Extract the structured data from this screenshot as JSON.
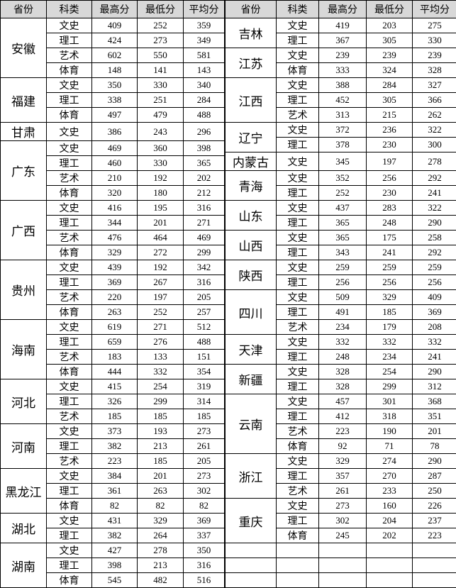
{
  "colors": {
    "header_bg": "#d8d8d8",
    "border": "#000000",
    "text": "#000000",
    "background": "#ffffff"
  },
  "columns": [
    "省份",
    "科类",
    "最高分",
    "最低分",
    "平均分"
  ],
  "tables": [
    {
      "side": "left",
      "empty_rows": 0,
      "groups": [
        {
          "province": "安徽",
          "rows": [
            [
              "文史",
              "409",
              "252",
              "359"
            ],
            [
              "理工",
              "424",
              "273",
              "349"
            ],
            [
              "艺术",
              "602",
              "550",
              "581"
            ],
            [
              "体育",
              "148",
              "141",
              "143"
            ]
          ]
        },
        {
          "province": "福建",
          "rows": [
            [
              "文史",
              "350",
              "330",
              "340"
            ],
            [
              "理工",
              "338",
              "251",
              "284"
            ],
            [
              "体育",
              "497",
              "479",
              "488"
            ]
          ]
        },
        {
          "province": "甘肃",
          "rows": [
            [
              "文史",
              "386",
              "243",
              "296"
            ]
          ]
        },
        {
          "province": "广东",
          "rows": [
            [
              "文史",
              "469",
              "360",
              "398"
            ],
            [
              "理工",
              "460",
              "330",
              "365"
            ],
            [
              "艺术",
              "210",
              "192",
              "202"
            ],
            [
              "体育",
              "320",
              "180",
              "212"
            ]
          ]
        },
        {
          "province": "广西",
          "rows": [
            [
              "文史",
              "416",
              "195",
              "316"
            ],
            [
              "理工",
              "344",
              "201",
              "271"
            ],
            [
              "艺术",
              "476",
              "464",
              "469"
            ],
            [
              "体育",
              "329",
              "272",
              "299"
            ]
          ]
        },
        {
          "province": "贵州",
          "rows": [
            [
              "文史",
              "439",
              "192",
              "342"
            ],
            [
              "理工",
              "369",
              "267",
              "316"
            ],
            [
              "艺术",
              "220",
              "197",
              "205"
            ],
            [
              "体育",
              "263",
              "252",
              "257"
            ]
          ]
        },
        {
          "province": "海南",
          "rows": [
            [
              "文史",
              "619",
              "271",
              "512"
            ],
            [
              "理工",
              "659",
              "276",
              "488"
            ],
            [
              "艺术",
              "183",
              "133",
              "151"
            ],
            [
              "体育",
              "444",
              "332",
              "354"
            ]
          ]
        },
        {
          "province": "河北",
          "rows": [
            [
              "文史",
              "415",
              "254",
              "319"
            ],
            [
              "理工",
              "326",
              "299",
              "314"
            ],
            [
              "艺术",
              "185",
              "185",
              "185"
            ]
          ]
        },
        {
          "province": "河南",
          "rows": [
            [
              "文史",
              "373",
              "193",
              "273"
            ],
            [
              "理工",
              "382",
              "213",
              "261"
            ],
            [
              "艺术",
              "223",
              "185",
              "205"
            ]
          ]
        },
        {
          "province": "黑龙江",
          "rows": [
            [
              "文史",
              "384",
              "201",
              "273"
            ],
            [
              "理工",
              "361",
              "263",
              "302"
            ],
            [
              "体育",
              "82",
              "82",
              "82"
            ]
          ]
        },
        {
          "province": "湖北",
          "rows": [
            [
              "文史",
              "431",
              "329",
              "369"
            ],
            [
              "理工",
              "382",
              "264",
              "337"
            ]
          ]
        },
        {
          "province": "湖南",
          "rows": [
            [
              "文史",
              "427",
              "278",
              "350"
            ],
            [
              "理工",
              "398",
              "213",
              "316"
            ],
            [
              "体育",
              "545",
              "482",
              "516"
            ]
          ]
        }
      ]
    },
    {
      "side": "right",
      "empty_rows": 3,
      "groups": [
        {
          "province": "吉林",
          "rows": [
            [
              "文史",
              "419",
              "203",
              "275"
            ],
            [
              "理工",
              "367",
              "305",
              "330"
            ]
          ]
        },
        {
          "province": "江苏",
          "rows": [
            [
              "文史",
              "239",
              "239",
              "239"
            ],
            [
              "体育",
              "333",
              "324",
              "328"
            ]
          ]
        },
        {
          "province": "江西",
          "rows": [
            [
              "文史",
              "388",
              "284",
              "327"
            ],
            [
              "理工",
              "452",
              "305",
              "366"
            ],
            [
              "艺术",
              "313",
              "215",
              "262"
            ]
          ]
        },
        {
          "province": "辽宁",
          "rows": [
            [
              "文史",
              "372",
              "236",
              "322"
            ],
            [
              "理工",
              "378",
              "230",
              "300"
            ]
          ]
        },
        {
          "province": "内蒙古",
          "rows": [
            [
              "文史",
              "345",
              "197",
              "278"
            ]
          ]
        },
        {
          "province": "青海",
          "rows": [
            [
              "文史",
              "352",
              "256",
              "292"
            ],
            [
              "理工",
              "252",
              "230",
              "241"
            ]
          ]
        },
        {
          "province": "山东",
          "rows": [
            [
              "文史",
              "437",
              "283",
              "322"
            ],
            [
              "理工",
              "365",
              "248",
              "290"
            ]
          ]
        },
        {
          "province": "山西",
          "rows": [
            [
              "文史",
              "365",
              "175",
              "258"
            ],
            [
              "理工",
              "343",
              "241",
              "292"
            ]
          ]
        },
        {
          "province": "陕西",
          "rows": [
            [
              "文史",
              "259",
              "259",
              "259"
            ],
            [
              "理工",
              "256",
              "256",
              "256"
            ]
          ]
        },
        {
          "province": "四川",
          "rows": [
            [
              "文史",
              "509",
              "329",
              "409"
            ],
            [
              "理工",
              "491",
              "185",
              "369"
            ],
            [
              "艺术",
              "234",
              "179",
              "208"
            ]
          ]
        },
        {
          "province": "天津",
          "rows": [
            [
              "文史",
              "332",
              "332",
              "332"
            ],
            [
              "理工",
              "248",
              "234",
              "241"
            ]
          ]
        },
        {
          "province": "新疆",
          "rows": [
            [
              "文史",
              "328",
              "254",
              "290"
            ],
            [
              "理工",
              "328",
              "299",
              "312"
            ]
          ]
        },
        {
          "province": "云南",
          "rows": [
            [
              "文史",
              "457",
              "301",
              "368"
            ],
            [
              "理工",
              "412",
              "318",
              "351"
            ],
            [
              "艺术",
              "223",
              "190",
              "201"
            ],
            [
              "体育",
              "92",
              "71",
              "78"
            ]
          ]
        },
        {
          "province": "浙江",
          "rows": [
            [
              "文史",
              "329",
              "274",
              "290"
            ],
            [
              "理工",
              "357",
              "270",
              "287"
            ],
            [
              "艺术",
              "261",
              "233",
              "250"
            ]
          ]
        },
        {
          "province": "重庆",
          "rows": [
            [
              "文史",
              "273",
              "160",
              "226"
            ],
            [
              "理工",
              "302",
              "204",
              "237"
            ],
            [
              "体育",
              "245",
              "202",
              "223"
            ]
          ]
        }
      ]
    }
  ]
}
